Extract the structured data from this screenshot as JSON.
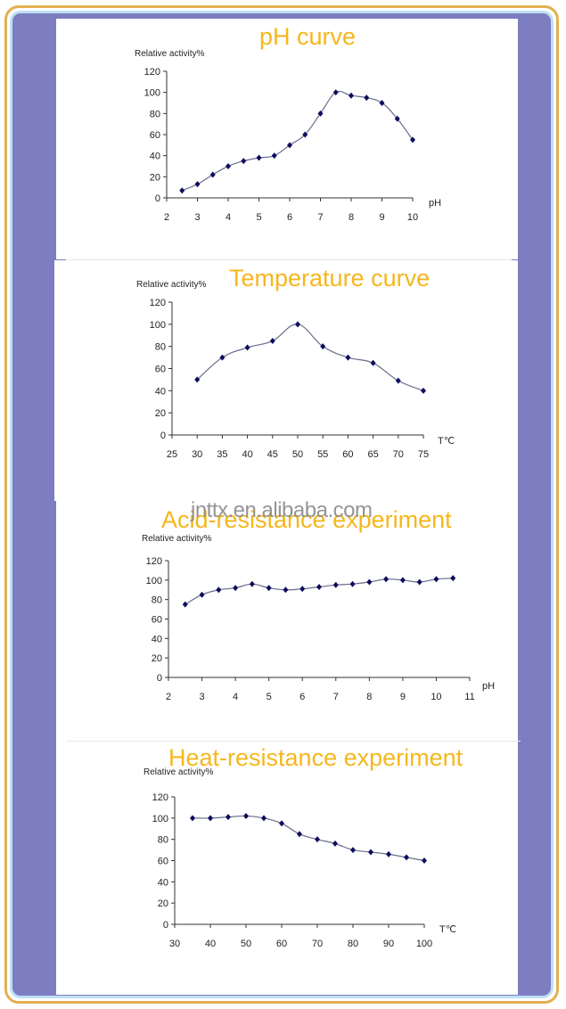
{
  "watermark": "jnttx.en.alibaba.com",
  "colors": {
    "title": "#f5b71c",
    "line": "#6b6b8a",
    "marker": "#0d0d5e",
    "frame_outer": "#e3b04f",
    "frame_inner": "#bfdff5",
    "background": "#7d7dc1"
  },
  "chart_data": [
    {
      "type": "line",
      "title": "pH curve",
      "ylabel": "Relative activity%",
      "xlabel": "pH",
      "xlim": [
        2,
        10
      ],
      "ylim": [
        0,
        120
      ],
      "xticks": [
        2,
        3,
        4,
        5,
        6,
        7,
        8,
        9,
        10
      ],
      "yticks": [
        0,
        20,
        40,
        60,
        80,
        100,
        120
      ],
      "grid": false,
      "x": [
        2.5,
        3,
        3.5,
        4,
        4.5,
        5,
        5.5,
        6,
        6.5,
        7,
        7.5,
        8,
        8.5,
        9,
        9.5,
        10
      ],
      "values": [
        7,
        13,
        22,
        30,
        35,
        38,
        40,
        50,
        60,
        80,
        100,
        97,
        95,
        90,
        75,
        55
      ]
    },
    {
      "type": "line",
      "title": "Temperature curve",
      "ylabel": "Relative activity%",
      "xlabel": "T℃",
      "xlim": [
        25,
        75
      ],
      "ylim": [
        0,
        120
      ],
      "xticks": [
        25,
        30,
        35,
        40,
        45,
        50,
        55,
        60,
        65,
        70,
        75
      ],
      "yticks": [
        0,
        20,
        40,
        60,
        80,
        100,
        120
      ],
      "grid": false,
      "x": [
        30,
        35,
        40,
        45,
        50,
        55,
        60,
        65,
        70,
        75
      ],
      "values": [
        50,
        70,
        79,
        85,
        100,
        80,
        70,
        65,
        49,
        40
      ]
    },
    {
      "type": "line",
      "title": "Acid-resistance experiment",
      "ylabel": "Relative activity%",
      "xlabel": "pH",
      "xlim": [
        2,
        11
      ],
      "ylim": [
        0,
        120
      ],
      "xticks": [
        2,
        3,
        4,
        5,
        6,
        7,
        8,
        9,
        10,
        11
      ],
      "yticks": [
        0,
        20,
        40,
        60,
        80,
        100,
        120
      ],
      "grid": false,
      "x": [
        2.5,
        3,
        3.5,
        4,
        4.5,
        5,
        5.5,
        6,
        6.5,
        7,
        7.5,
        8,
        8.5,
        9,
        9.5,
        10,
        10.5
      ],
      "values": [
        75,
        85,
        90,
        92,
        96,
        92,
        90,
        91,
        93,
        95,
        96,
        98,
        101,
        100,
        98,
        101,
        102
      ]
    },
    {
      "type": "line",
      "title": "Heat-resistance experiment",
      "ylabel": "Relative activity%",
      "xlabel": "T℃",
      "xlim": [
        30,
        100
      ],
      "ylim": [
        0,
        120
      ],
      "xticks": [
        30,
        40,
        50,
        60,
        70,
        80,
        90,
        100
      ],
      "yticks": [
        0,
        20,
        40,
        60,
        80,
        100,
        120
      ],
      "grid": false,
      "x": [
        35,
        40,
        45,
        50,
        55,
        60,
        65,
        70,
        75,
        80,
        85,
        90,
        95,
        100
      ],
      "values": [
        100,
        100,
        101,
        102,
        100,
        95,
        85,
        80,
        76,
        70,
        68,
        66,
        63,
        60
      ]
    }
  ]
}
